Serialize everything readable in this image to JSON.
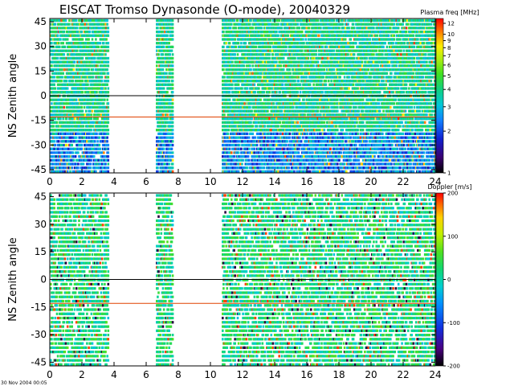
{
  "chart_data": {
    "title": "EISCAT Tromso Dynasonde (O-mode),  20040329",
    "timestamp": "30 Nov 2004 00:05",
    "panels": [
      {
        "type": "heatmap",
        "quantity": "plasma frequency",
        "ylabel": "NS Zenith angle",
        "xlim": [
          0,
          24
        ],
        "ylim": [
          -47,
          47
        ],
        "x_ticks": [
          "0",
          "2",
          "4",
          "6",
          "8",
          "10",
          "12",
          "14",
          "16",
          "18",
          "20",
          "22",
          "24"
        ],
        "y_ticks": [
          "-45",
          "-30",
          "-15",
          "0",
          "15",
          "30",
          "45"
        ],
        "reference_lines": [
          {
            "y": 0,
            "color": "#000000"
          },
          {
            "y": -13,
            "color": "#e04000"
          }
        ],
        "data_time_intervals": [
          [
            0,
            3.6
          ],
          [
            6.6,
            7.6
          ],
          [
            10.7,
            24
          ]
        ],
        "colorbar": {
          "title": "Plasma freq [MHz]",
          "scale": "log",
          "range": [
            1,
            13
          ],
          "ticks": [
            "1",
            "2",
            "3",
            "4",
            "5",
            "6",
            "7",
            "8",
            "9",
            "10",
            "12"
          ]
        }
      },
      {
        "type": "heatmap",
        "quantity": "Doppler velocity",
        "ylabel": "NS Zenith angle",
        "xlim": [
          0,
          24
        ],
        "ylim": [
          -47,
          47
        ],
        "x_ticks": [
          "0",
          "2",
          "4",
          "6",
          "8",
          "10",
          "12",
          "14",
          "16",
          "18",
          "20",
          "22",
          "24"
        ],
        "y_ticks": [
          "-45",
          "-30",
          "-15",
          "0",
          "15",
          "30",
          "45"
        ],
        "reference_lines": [
          {
            "y": 0,
            "color": "#000000"
          },
          {
            "y": -13,
            "color": "#e04000"
          }
        ],
        "data_time_intervals": [
          [
            0,
            3.6
          ],
          [
            6.6,
            7.6
          ],
          [
            10.7,
            24
          ]
        ],
        "colorbar": {
          "title": "Doppler [m/s]",
          "scale": "linear",
          "range": [
            -200,
            200
          ],
          "ticks": [
            "-200",
            "-100",
            "0",
            "100",
            "200"
          ]
        }
      }
    ]
  }
}
